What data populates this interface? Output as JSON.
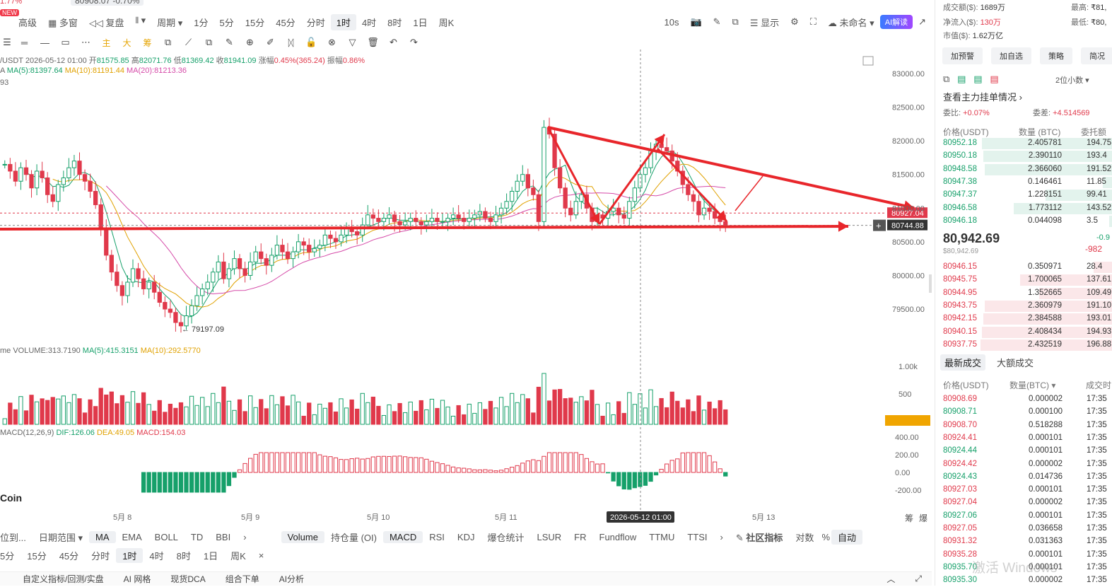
{
  "header": {
    "new_badge": "NEW",
    "partial_top_left": "1.77%",
    "partial_top_mid": "80908.07 -0.70%"
  },
  "toolbar": {
    "items": [
      "高级",
      "多窗",
      "复盘",
      "周期",
      "1分",
      "5分",
      "15分",
      "45分",
      "分时",
      "1时",
      "4时",
      "8时",
      "1日",
      "周K"
    ],
    "active": "1时",
    "right_items": [
      "10s",
      "显示",
      "未命名"
    ],
    "ai_label": "AI解读"
  },
  "drawing_tools": [
    "☰",
    "═",
    "—",
    "▭",
    "⋯",
    "主",
    "大",
    "筹",
    "⧉",
    "⟋",
    "⧉",
    "✎",
    "⊕",
    "✐",
    "ᛞ",
    "🔓",
    "⊗",
    "▽",
    "🗑",
    "↶",
    "↷"
  ],
  "ohlc": {
    "pair": "/USDT",
    "time": "2026-05-12 01:00",
    "open_label": "开",
    "open": "81575.85",
    "high_label": "高",
    "high": "82071.76",
    "low_label": "低",
    "low": "81369.42",
    "close_label": "收",
    "close": "81941.09",
    "change_label": "涨幅",
    "change": "0.45%(365.24)",
    "amp_label": "振幅",
    "amp": "0.86%"
  },
  "ma": {
    "prefix": "A",
    "ma5": "MA(5):81397.64",
    "ma10": "MA(10):81191.44",
    "ma20": "MA(20):81213.36",
    "partial": "93"
  },
  "volume": {
    "prefix": "me",
    "vol": "VOLUME:313.7190",
    "ma5": "MA(5):415.3151",
    "ma10": "MA(10):292.5770"
  },
  "macd": {
    "prefix": "MACD(12,26,9)",
    "dif": "DIF:126.06",
    "dea": "DEA:49.05",
    "macd": "MACD:154.03"
  },
  "y_axis": [
    "83000.00",
    "82500.00",
    "82000.00",
    "81500.00",
    "81000.00",
    "80500.00",
    "80000.00",
    "79500.00"
  ],
  "price_tags": {
    "upper": "80927.04",
    "lower": "80744.88"
  },
  "low_marker": "← 79197.09",
  "vol_axis": [
    "1.00k",
    "500",
    "40"
  ],
  "macd_axis": [
    "400.00",
    "200.00",
    "0.00",
    "-200.00"
  ],
  "x_axis": [
    "5月 8",
    "5月 9",
    "5月 10",
    "5月 11",
    "5月 13"
  ],
  "crosshair_time": "2026-05-12 01:00",
  "coin_watermark": "Coin",
  "x_axis_right": [
    "筹",
    "爆"
  ],
  "indicator_bar": {
    "left": [
      "位到...",
      "日期范围"
    ],
    "main": [
      "MA",
      "EMA",
      "BOLL",
      "TD",
      "BBI"
    ],
    "sub": [
      "Volume",
      "持仓量 (OI)",
      "MACD",
      "RSI",
      "KDJ",
      "爆仓统计",
      "LSUR",
      "FR",
      "Fundflow",
      "TTMU",
      "TTSI"
    ],
    "community": "社区指标",
    "right": [
      "对数",
      "%",
      "自动"
    ]
  },
  "period_bar": [
    "5分",
    "15分",
    "45分",
    "分时",
    "1时",
    "4时",
    "8时",
    "1日",
    "周K"
  ],
  "period_active": "1时",
  "tab_bar": [
    "自定义指标/回测/实盘",
    "AI 网格",
    "现货DCA",
    "组合下单",
    "AI分析"
  ],
  "right_panel": {
    "stats": [
      {
        "label": "成交额($):",
        "value": "1689万"
      },
      {
        "label": "净流入($):",
        "value": "130万"
      },
      {
        "label": "市值($):",
        "value": "1.62万亿"
      }
    ],
    "high_label": "最高:",
    "high_val": "₹81,",
    "low_label": "最低:",
    "low_val": "₹80,",
    "buttons": [
      "加预警",
      "加自选",
      "策略",
      "简况"
    ],
    "decimals": "2位小数",
    "main_orders": "查看主力挂单情况",
    "ratio_label": "委比:",
    "ratio_val": "+0.07%",
    "diff_label": "委差:",
    "diff_val": "+4.514569",
    "ob_headers": [
      "价格(USDT)",
      "数量 (BTC)",
      "委托额"
    ],
    "asks": [
      {
        "p": "80952.18",
        "q": "2.405781",
        "t": "194.75",
        "w": 0.82
      },
      {
        "p": "80950.18",
        "q": "2.390110",
        "t": "193.4",
        "w": 0.81
      },
      {
        "p": "80948.58",
        "q": "2.366060",
        "t": "191.52",
        "w": 0.8
      },
      {
        "p": "80947.38",
        "q": "0.146461",
        "t": "11.85",
        "w": 0.06
      },
      {
        "p": "80947.37",
        "q": "1.228151",
        "t": "99.41",
        "w": 0.42
      },
      {
        "p": "80946.58",
        "q": "1.773112",
        "t": "143.52",
        "w": 0.62
      },
      {
        "p": "80946.18",
        "q": "0.044098",
        "t": "3.5",
        "w": 0.02
      }
    ],
    "last_price": "80,942.69",
    "last_sub": "$80,942.69",
    "last_chg": "-0.9",
    "last_chg2": "-982",
    "bids": [
      {
        "p": "80946.15",
        "q": "0.350971",
        "t": "28.4",
        "w": 0.12
      },
      {
        "p": "80945.75",
        "q": "1.700065",
        "t": "137.61",
        "w": 0.58
      },
      {
        "p": "80944.95",
        "q": "1.352665",
        "t": "109.49",
        "w": 0.46
      },
      {
        "p": "80943.75",
        "q": "2.360979",
        "t": "191.10",
        "w": 0.8
      },
      {
        "p": "80942.15",
        "q": "2.384588",
        "t": "193.01",
        "w": 0.81
      },
      {
        "p": "80940.15",
        "q": "2.408434",
        "t": "194.93",
        "w": 0.82
      },
      {
        "p": "80937.75",
        "q": "2.432519",
        "t": "196.88",
        "w": 0.83
      }
    ],
    "trade_tabs": [
      "最新成交",
      "大额成交"
    ],
    "tr_headers": [
      "价格(USDT)",
      "数量(BTC)",
      "成交时"
    ],
    "trades": [
      {
        "p": "80908.69",
        "c": "red",
        "q": "0.000002",
        "t": "17:35"
      },
      {
        "p": "80908.71",
        "c": "green",
        "q": "0.000100",
        "t": "17:35"
      },
      {
        "p": "80908.70",
        "c": "red",
        "q": "0.518288",
        "t": "17:35"
      },
      {
        "p": "80924.41",
        "c": "red",
        "q": "0.000101",
        "t": "17:35"
      },
      {
        "p": "80924.44",
        "c": "green",
        "q": "0.000101",
        "t": "17:35"
      },
      {
        "p": "80924.42",
        "c": "red",
        "q": "0.000002",
        "t": "17:35"
      },
      {
        "p": "80924.43",
        "c": "green",
        "q": "0.014736",
        "t": "17:35"
      },
      {
        "p": "80927.03",
        "c": "red",
        "q": "0.000101",
        "t": "17:35"
      },
      {
        "p": "80927.04",
        "c": "red",
        "q": "0.000002",
        "t": "17:35"
      },
      {
        "p": "80927.06",
        "c": "green",
        "q": "0.000101",
        "t": "17:35"
      },
      {
        "p": "80927.05",
        "c": "red",
        "q": "0.036658",
        "t": "17:35"
      },
      {
        "p": "80931.32",
        "c": "red",
        "q": "0.031363",
        "t": "17:35"
      },
      {
        "p": "80935.28",
        "c": "red",
        "q": "0.000101",
        "t": "17:35"
      },
      {
        "p": "80935.70",
        "c": "green",
        "q": "0.000101",
        "t": "17:35"
      },
      {
        "p": "80935.30",
        "c": "green",
        "q": "0.000002",
        "t": "17:35"
      }
    ],
    "watermark": "激活 Windows"
  },
  "colors": {
    "up": "#16a06a",
    "down": "#e0394b",
    "accent": "#e0a100"
  }
}
